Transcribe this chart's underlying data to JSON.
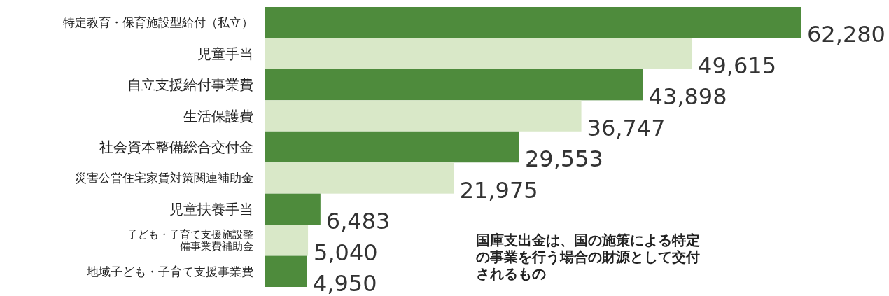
{
  "chart_data": {
    "type": "bar",
    "orientation": "horizontal",
    "categories": [
      "特定教育・保育施設型給付（私立）",
      "児童手当",
      "自立支援給付事業費",
      "生活保護費",
      "社会資本整備総合交付金",
      "災害公営住宅家賃対策関連補助金",
      "児童扶養手当",
      "子ども・子育て支援施設整備事業費補助金",
      "地域子ども・子育て支援事業費"
    ],
    "values": [
      62280,
      49615,
      43898,
      36747,
      29553,
      21975,
      6483,
      5040,
      4950
    ],
    "colors": [
      "#4e8b3c",
      "#d9e8c8",
      "#4e8b3c",
      "#d9e8c8",
      "#4e8b3c",
      "#d9e8c8",
      "#4e8b3c",
      "#d9e8c8",
      "#4e8b3c"
    ],
    "value_labels": [
      "62,280",
      "49,615",
      "43,898",
      "36,747",
      "29,553",
      "21,975",
      "6,483",
      "5,040",
      "4,950"
    ],
    "annotations": [
      "国庫支出金は、国の施策による特定の事業を行う場合の財源として交付されるもの"
    ]
  }
}
